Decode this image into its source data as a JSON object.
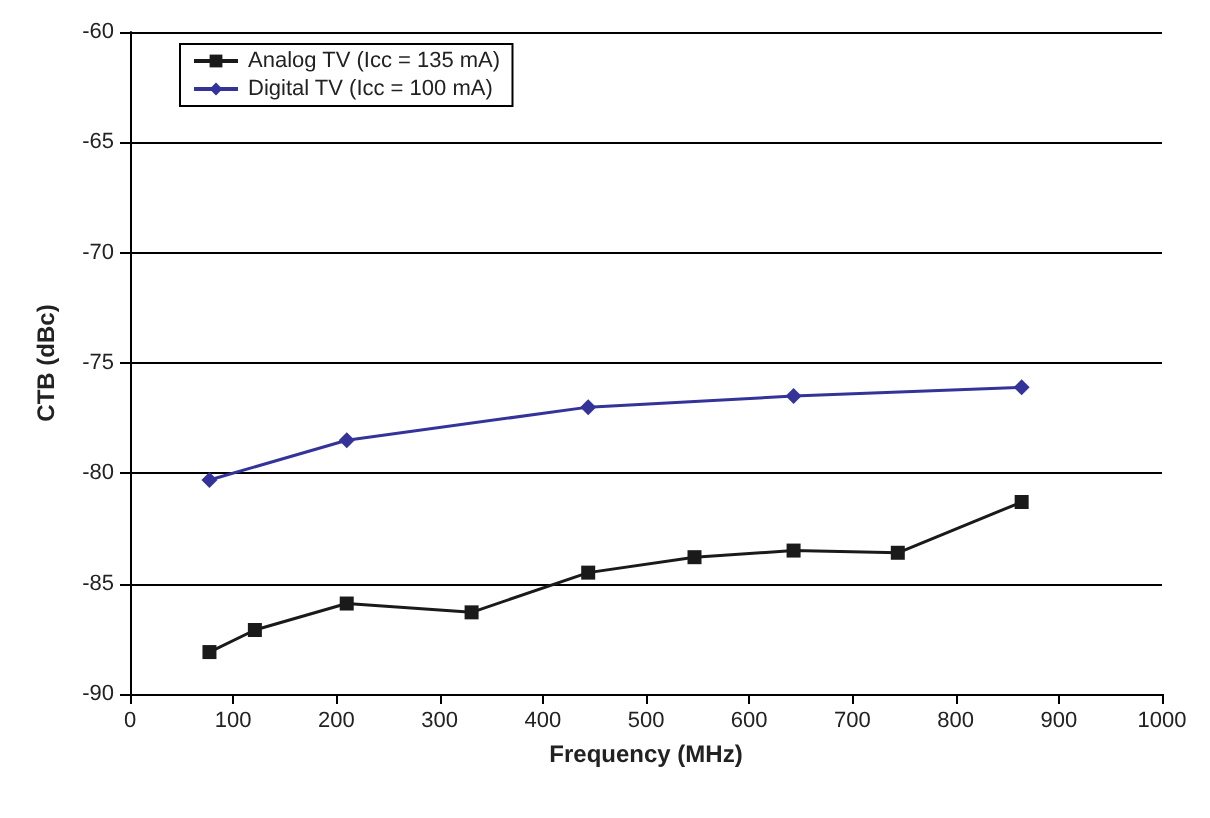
{
  "chart_data": {
    "type": "line",
    "xlabel": "Frequency (MHz)",
    "ylabel": "CTB (dBc)",
    "xlim": [
      0,
      1000
    ],
    "xticks": [
      0,
      100,
      200,
      300,
      400,
      500,
      600,
      700,
      800,
      900,
      1000
    ],
    "ylim": [
      -90,
      -60
    ],
    "yticks": [
      -90,
      -85,
      -80,
      -75,
      -70,
      -65,
      -60
    ],
    "grid": "y",
    "legend": "top left",
    "series": [
      {
        "name": "Analog TV (Icc = 135 mA)",
        "color": "#1a1a1a",
        "marker": "square",
        "x": [
          77,
          121,
          210,
          331,
          444,
          547,
          643,
          744,
          864
        ],
        "values": [
          -88.1,
          -87.1,
          -85.9,
          -86.3,
          -84.5,
          -83.8,
          -83.5,
          -83.6,
          -81.3
        ]
      },
      {
        "name": "Digital TV (Icc = 100 mA)",
        "color": "#333399",
        "marker": "diamond",
        "x": [
          77,
          210,
          444,
          643,
          864
        ],
        "values": [
          -80.3,
          -78.5,
          -77.0,
          -76.5,
          -76.1
        ]
      }
    ]
  }
}
